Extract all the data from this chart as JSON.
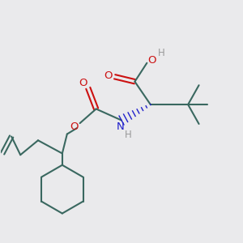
{
  "bg_color": "#eaeaec",
  "bond_color": "#3a6860",
  "bond_width": 1.5,
  "o_color": "#cc1111",
  "n_color": "#2020cc",
  "h_color": "#999999",
  "font_size": 8.0,
  "fig_size": [
    3.0,
    3.0
  ],
  "dpi": 100,
  "xlim": [
    0.0,
    10.0
  ],
  "ylim": [
    0.5,
    9.5
  ]
}
